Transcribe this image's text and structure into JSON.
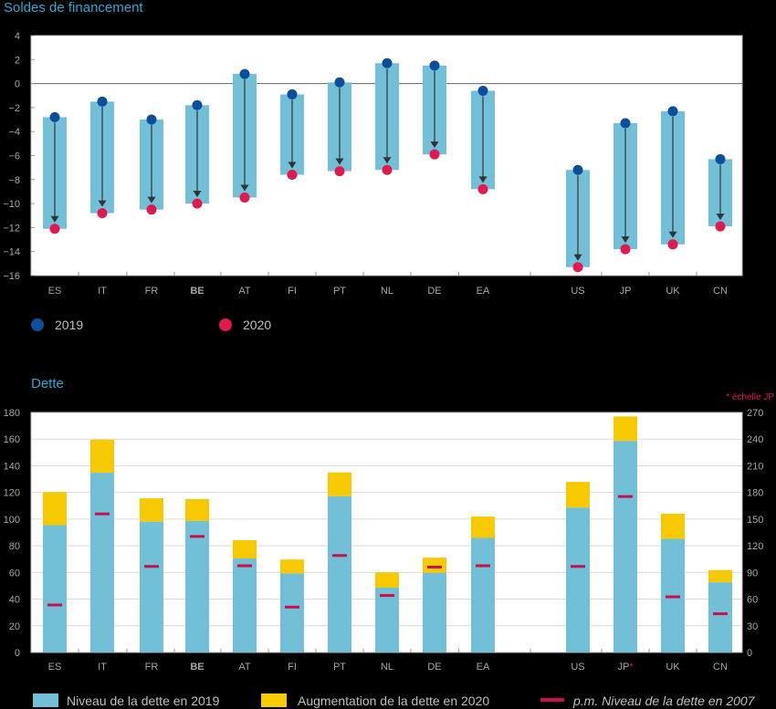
{
  "colors": {
    "bar": "#72bfd8",
    "increase": "#f6c900",
    "dot_2019": "#0b4f9c",
    "dot_2020": "#e0194f",
    "marker_2007": "#c8104a",
    "title": "#29a9d6",
    "arrow": "#333333"
  },
  "chart_data": [
    {
      "type": "bar",
      "title": "Soldes de financement",
      "categories": [
        "ES",
        "IT",
        "FR",
        "BE",
        "AT",
        "FI",
        "PT",
        "NL",
        "DE",
        "EA",
        "US",
        "JP",
        "UK",
        "CN"
      ],
      "bold_categories": [
        "BE"
      ],
      "gap_after_category": "EA",
      "ylim": [
        -16,
        4
      ],
      "yticks": [
        "4",
        "2",
        "0",
        "−2",
        "−4",
        "−6",
        "−8",
        "−10",
        "−12",
        "−14",
        "−16"
      ],
      "series": [
        {
          "name": "2019",
          "values": [
            -2.8,
            -1.5,
            -3.0,
            -1.8,
            0.8,
            -0.9,
            0.1,
            1.7,
            1.5,
            -0.6,
            -7.2,
            -3.3,
            -2.3,
            -6.3
          ]
        },
        {
          "name": "2020",
          "values": [
            -12.1,
            -10.8,
            -10.5,
            -10.0,
            -9.5,
            -7.6,
            -7.3,
            -7.2,
            -5.9,
            -8.8,
            -15.3,
            -13.8,
            -13.4,
            -11.9
          ]
        }
      ],
      "legend": [
        "2019",
        "2020"
      ],
      "grid": false
    },
    {
      "type": "bar",
      "title": "Dette",
      "categories": [
        "ES",
        "IT",
        "FR",
        "BE",
        "AT",
        "FI",
        "PT",
        "NL",
        "DE",
        "EA",
        "US",
        "JP*",
        "UK",
        "CN"
      ],
      "bold_categories": [
        "BE"
      ],
      "gap_after_category": "EA",
      "ylim": [
        0,
        180
      ],
      "y2lim": [
        0,
        270
      ],
      "yticks": [
        "180",
        "160",
        "140",
        "120",
        "100",
        "80",
        "60",
        "40",
        "20",
        "0"
      ],
      "y2ticks": [
        "270",
        "240",
        "210",
        "180",
        "150",
        "120",
        "90",
        "60",
        "30",
        "0"
      ],
      "right_axis_note": "* échelle JP",
      "series": [
        {
          "name": "Niveau de la dette en 2019",
          "values": [
            95.5,
            134.8,
            98.1,
            98.6,
            70.5,
            59.3,
            117.2,
            48.6,
            59.8,
            85.9,
            108.7,
            238,
            85.2,
            52.6
          ]
        },
        {
          "name": "Augmentation de la dette en 2020",
          "values": [
            24.8,
            24.8,
            17.5,
            16.4,
            13.7,
            10.4,
            17.8,
            11.4,
            11.3,
            16.0,
            19.2,
            27.5,
            18.9,
            9.2
          ]
        },
        {
          "name": "p.m. Niveau de la dette en 2007",
          "values": [
            35.6,
            103.9,
            64.5,
            87.0,
            65.0,
            34.0,
            72.7,
            42.7,
            64.0,
            65.0,
            64.5,
            175.4,
            41.7,
            29.0
          ]
        }
      ],
      "legend": [
        "Niveau de la dette en 2019",
        "Augmentation de la dette en 2020",
        "p.m. Niveau de la dette en 2007"
      ],
      "grid": true
    }
  ]
}
